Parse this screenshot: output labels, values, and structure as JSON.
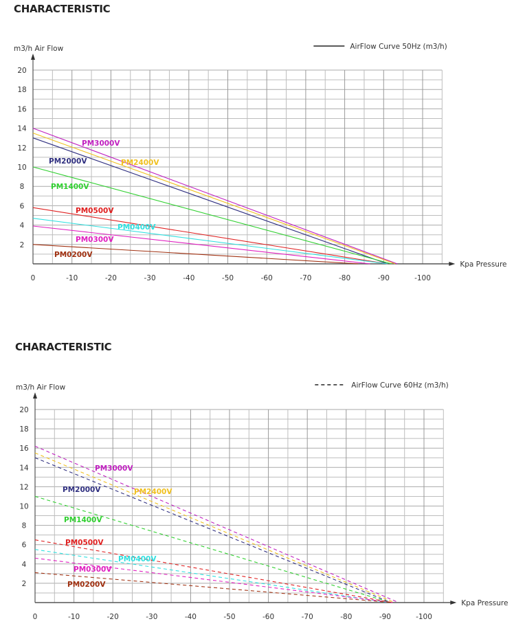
{
  "chart_data": [
    {
      "type": "line",
      "title": "CHARACTERISTIC",
      "ylabel": "m3/h  Air Flow",
      "xlabel": "Kpa  Pressure",
      "legend": "AirFlow Curve 50Hz (m3/h)",
      "legend_style": "solid",
      "legend_placement": "top-right",
      "xlim": [
        0,
        -105
      ],
      "ylim": [
        0,
        20
      ],
      "x_ticks": [
        "0",
        "-10",
        "-20",
        "-30",
        "-40",
        "-50",
        "-60",
        "-70",
        "-80",
        "-90",
        "-100"
      ],
      "y_ticks": [
        "2",
        "4",
        "6",
        "8",
        "10",
        "12",
        "14",
        "16",
        "18",
        "20"
      ],
      "grid": true,
      "series": [
        {
          "name": "PM3000V",
          "color": "#c020c0",
          "points": [
            [
              0,
              14
            ],
            [
              -93.5,
              0
            ]
          ]
        },
        {
          "name": "PM2400V",
          "color": "#f0c020",
          "points": [
            [
              0,
              13.5
            ],
            [
              -93,
              0
            ]
          ]
        },
        {
          "name": "PM2000V",
          "color": "#303080",
          "points": [
            [
              0,
              13
            ],
            [
              -91,
              0
            ]
          ]
        },
        {
          "name": "PM1400V",
          "color": "#30d030",
          "points": [
            [
              0,
              10
            ],
            [
              -92,
              0
            ]
          ]
        },
        {
          "name": "PM0500V",
          "color": "#e02020",
          "points": [
            [
              0,
              5.8
            ],
            [
              -91,
              0
            ]
          ]
        },
        {
          "name": "PM0400V",
          "color": "#30e0e0",
          "points": [
            [
              0,
              4.7
            ],
            [
              -91,
              0
            ]
          ]
        },
        {
          "name": "PM0300V",
          "color": "#e020c0",
          "points": [
            [
              0,
              3.9
            ],
            [
              -86.5,
              0
            ]
          ]
        },
        {
          "name": "PM0200V",
          "color": "#a03010",
          "points": [
            [
              0,
              2.0
            ],
            [
              -83.5,
              0
            ]
          ]
        }
      ]
    },
    {
      "type": "line",
      "title": "CHARACTERISTIC",
      "ylabel": "m3/h  Air Flow",
      "xlabel": "Kpa  Pressure",
      "legend": "AirFlow Curve 60Hz (m3/h)",
      "legend_style": "dashed",
      "legend_placement": "top-right",
      "xlim": [
        0,
        -105
      ],
      "ylim": [
        0,
        20
      ],
      "x_ticks": [
        "0",
        "-10",
        "-20",
        "-30",
        "-40",
        "-50",
        "-60",
        "-70",
        "-80",
        "-90",
        "-100"
      ],
      "y_ticks": [
        "2",
        "4",
        "6",
        "8",
        "10",
        "12",
        "14",
        "16",
        "18",
        "20"
      ],
      "grid": true,
      "series": [
        {
          "name": "PM3000V",
          "color": "#c020c0",
          "points": [
            [
              0,
              16.2
            ],
            [
              -93.5,
              0
            ]
          ]
        },
        {
          "name": "PM2400V",
          "color": "#f0c020",
          "points": [
            [
              0,
              15.5
            ],
            [
              -92.5,
              0
            ]
          ]
        },
        {
          "name": "PM2000V",
          "color": "#303080",
          "points": [
            [
              0,
              15
            ],
            [
              -91.5,
              0
            ]
          ]
        },
        {
          "name": "PM1400V",
          "color": "#30d030",
          "points": [
            [
              0,
              11
            ],
            [
              -91.5,
              0
            ]
          ]
        },
        {
          "name": "PM0500V",
          "color": "#e02020",
          "points": [
            [
              0,
              6.5
            ],
            [
              -92,
              0
            ]
          ]
        },
        {
          "name": "PM0400V",
          "color": "#30e0e0",
          "points": [
            [
              0,
              5.5
            ],
            [
              -91,
              0
            ]
          ]
        },
        {
          "name": "PM0300V",
          "color": "#e020c0",
          "points": [
            [
              0,
              4.6
            ],
            [
              -92,
              0
            ]
          ]
        },
        {
          "name": "PM0200V",
          "color": "#a03010",
          "points": [
            [
              0,
              3.1
            ],
            [
              -92,
              0
            ]
          ]
        }
      ]
    }
  ]
}
